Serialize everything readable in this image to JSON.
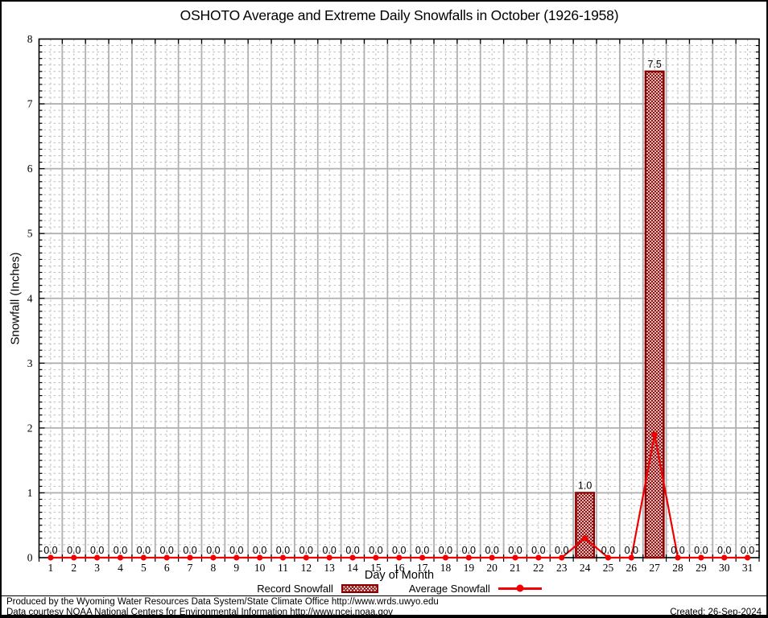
{
  "chart_data": {
    "type": "bar",
    "title": "OSHOTO Average and Extreme Daily Snowfalls in October (1926-1958)",
    "xlabel": "Day of Month",
    "ylabel": "Snowfall (Inches)",
    "xlim": [
      0.5,
      31.5
    ],
    "ylim": [
      0,
      8
    ],
    "ytick_step": 1,
    "y_minor_step": 0.1,
    "grid": {
      "major_color": "#b0b0b0",
      "minor_color": "#bcbcbc",
      "on": true
    },
    "legend_position": "bottom",
    "x": [
      1,
      2,
      3,
      4,
      5,
      6,
      7,
      8,
      9,
      10,
      11,
      12,
      13,
      14,
      15,
      16,
      17,
      18,
      19,
      20,
      21,
      22,
      23,
      24,
      25,
      26,
      27,
      28,
      29,
      30,
      31
    ],
    "series": [
      {
        "name": "Record Snowfall",
        "type": "bar",
        "color": "#8b0000",
        "fill_pattern": "crosshatch",
        "values": [
          0,
          0,
          0,
          0,
          0,
          0,
          0,
          0,
          0,
          0,
          0,
          0,
          0,
          0,
          0,
          0,
          0,
          0,
          0,
          0,
          0,
          0,
          0,
          1.0,
          0,
          0,
          7.5,
          0,
          0,
          0,
          0
        ]
      },
      {
        "name": "Average Snowfall",
        "type": "line",
        "color": "#f00000",
        "marker": "filled-circle",
        "values": [
          0,
          0,
          0,
          0,
          0,
          0,
          0,
          0,
          0,
          0,
          0,
          0,
          0,
          0,
          0,
          0,
          0,
          0,
          0,
          0,
          0,
          0,
          0,
          0.3,
          0,
          0,
          1.9,
          0,
          0,
          0,
          0
        ]
      }
    ],
    "value_label_format": "one-decimal"
  },
  "footer": {
    "line1": "Produced by the Wyoming Water Resources Data System/State Climate Office http://www.wrds.uwyo.edu",
    "line2": "Data courtesy NOAA National Centers for Environmental Information http://www.ncei.noaa.gov",
    "created": "Created: 26-Sep-2024"
  }
}
